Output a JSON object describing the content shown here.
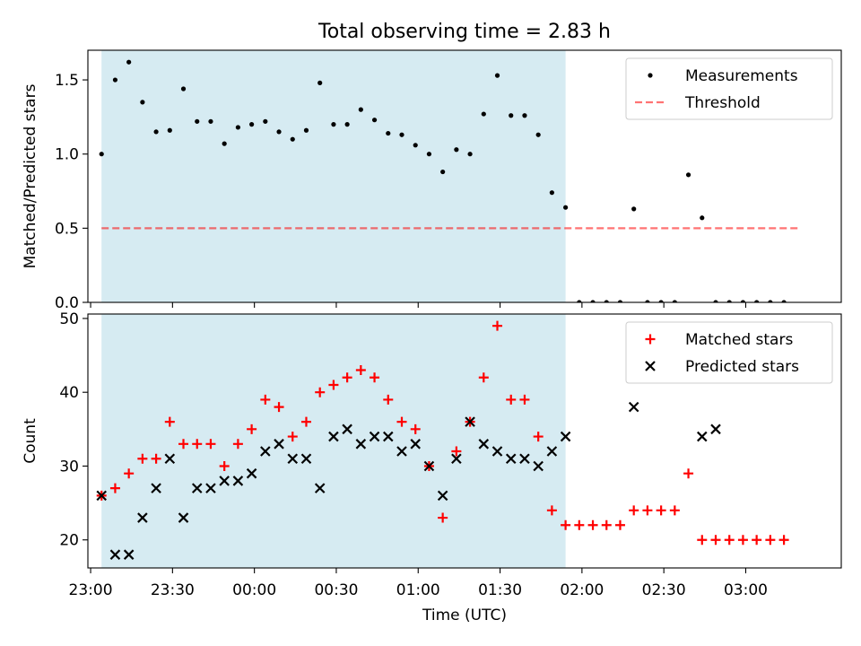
{
  "title": "Total observing time = 2.83 h",
  "colors": {
    "shade": "#add8e6",
    "threshold": "#ff0000",
    "measurement": "#000000",
    "matched": "#ff0000",
    "predicted": "#000000"
  },
  "chart_data": [
    {
      "type": "scatter",
      "ylabel": "Matched/Predicted stars",
      "ylim": [
        0,
        1.7
      ],
      "yticks": [
        0.0,
        0.5,
        1.0,
        1.5
      ],
      "ytick_labels": [
        "0.0",
        "0.5",
        "1.0",
        "1.5"
      ],
      "xlim": [
        "22:59",
        "03:35"
      ],
      "shaded_span": [
        "23:04",
        "01:54"
      ],
      "legend": {
        "position": "upper right",
        "entries": [
          {
            "label": "Measurements"
          },
          {
            "label": "Threshold"
          }
        ]
      },
      "threshold": {
        "name": "Threshold",
        "y": 0.5,
        "x_start": "23:04",
        "x_end": "03:20",
        "style": "dashed"
      },
      "series": [
        {
          "name": "Measurements",
          "marker": "dot",
          "x": [
            "23:04",
            "23:09",
            "23:14",
            "23:19",
            "23:24",
            "23:29",
            "23:34",
            "23:39",
            "23:44",
            "23:49",
            "23:54",
            "23:59",
            "00:04",
            "00:09",
            "00:14",
            "00:19",
            "00:24",
            "00:29",
            "00:34",
            "00:39",
            "00:44",
            "00:49",
            "00:54",
            "00:59",
            "01:04",
            "01:09",
            "01:14",
            "01:19",
            "01:24",
            "01:29",
            "01:34",
            "01:39",
            "01:44",
            "01:49",
            "01:54",
            "01:59",
            "02:04",
            "02:09",
            "02:14",
            "02:19",
            "02:24",
            "02:29",
            "02:34",
            "02:39",
            "02:44",
            "02:49",
            "02:54",
            "02:59",
            "03:04",
            "03:09",
            "03:14"
          ],
          "values": [
            1.0,
            1.5,
            1.62,
            1.35,
            1.15,
            1.16,
            1.44,
            1.22,
            1.22,
            1.07,
            1.18,
            1.2,
            1.22,
            1.15,
            1.1,
            1.16,
            1.48,
            1.2,
            1.2,
            1.3,
            1.23,
            1.14,
            1.13,
            1.06,
            1.0,
            0.88,
            1.03,
            1.0,
            1.27,
            1.53,
            1.26,
            1.26,
            1.13,
            0.74,
            0.64,
            0.0,
            0.0,
            0.0,
            0.0,
            0.63,
            0.0,
            0.0,
            0.0,
            0.86,
            0.57,
            0.0,
            0.0,
            0.0,
            0.0,
            0.0,
            0.0
          ]
        }
      ]
    },
    {
      "type": "scatter",
      "ylabel": "Count",
      "xlabel": "Time (UTC)",
      "ylim": [
        16.2,
        50.6
      ],
      "yticks": [
        20,
        30,
        40,
        50
      ],
      "ytick_labels": [
        "20",
        "30",
        "40",
        "50"
      ],
      "xlim": [
        "22:59",
        "03:35"
      ],
      "xticks": [
        "23:00",
        "23:30",
        "00:00",
        "00:30",
        "01:00",
        "01:30",
        "02:00",
        "02:30",
        "03:00"
      ],
      "shaded_span": [
        "23:04",
        "01:54"
      ],
      "legend": {
        "position": "upper right",
        "entries": [
          {
            "label": "Matched stars"
          },
          {
            "label": "Predicted stars"
          }
        ]
      },
      "series": [
        {
          "name": "Matched stars",
          "marker": "plus",
          "x": [
            "23:04",
            "23:09",
            "23:14",
            "23:19",
            "23:24",
            "23:29",
            "23:34",
            "23:39",
            "23:44",
            "23:49",
            "23:54",
            "23:59",
            "00:04",
            "00:09",
            "00:14",
            "00:19",
            "00:24",
            "00:29",
            "00:34",
            "00:39",
            "00:44",
            "00:49",
            "00:54",
            "00:59",
            "01:04",
            "01:09",
            "01:14",
            "01:19",
            "01:24",
            "01:29",
            "01:34",
            "01:39",
            "01:44",
            "01:49",
            "01:54",
            "01:59",
            "02:04",
            "02:09",
            "02:14",
            "02:19",
            "02:24",
            "02:29",
            "02:34",
            "02:39",
            "02:44",
            "02:49",
            "02:54",
            "02:59",
            "03:04",
            "03:09",
            "03:14"
          ],
          "values": [
            26,
            27,
            29,
            31,
            31,
            36,
            33,
            33,
            33,
            30,
            33,
            35,
            39,
            38,
            34,
            36,
            40,
            41,
            42,
            43,
            42,
            39,
            36,
            35,
            30,
            23,
            32,
            36,
            42,
            49,
            39,
            39,
            34,
            24,
            22,
            22,
            22,
            22,
            22,
            24,
            24,
            24,
            24,
            29,
            20,
            20,
            20,
            20,
            20,
            20,
            20
          ]
        },
        {
          "name": "Predicted stars",
          "marker": "x",
          "x": [
            "23:04",
            "23:09",
            "23:14",
            "23:19",
            "23:24",
            "23:29",
            "23:34",
            "23:39",
            "23:44",
            "23:49",
            "23:54",
            "23:59",
            "00:04",
            "00:09",
            "00:14",
            "00:19",
            "00:24",
            "00:29",
            "00:34",
            "00:39",
            "00:44",
            "00:49",
            "00:54",
            "00:59",
            "01:04",
            "01:09",
            "01:14",
            "01:19",
            "01:24",
            "01:29",
            "01:34",
            "01:39",
            "01:44",
            "01:49",
            "01:54",
            "02:19",
            "02:44",
            "02:49"
          ],
          "values": [
            26,
            18,
            18,
            23,
            27,
            31,
            23,
            27,
            27,
            28,
            28,
            29,
            32,
            33,
            31,
            31,
            27,
            34,
            35,
            33,
            34,
            34,
            32,
            33,
            30,
            26,
            31,
            36,
            33,
            32,
            31,
            31,
            30,
            32,
            34,
            38,
            34,
            35
          ]
        }
      ]
    }
  ]
}
